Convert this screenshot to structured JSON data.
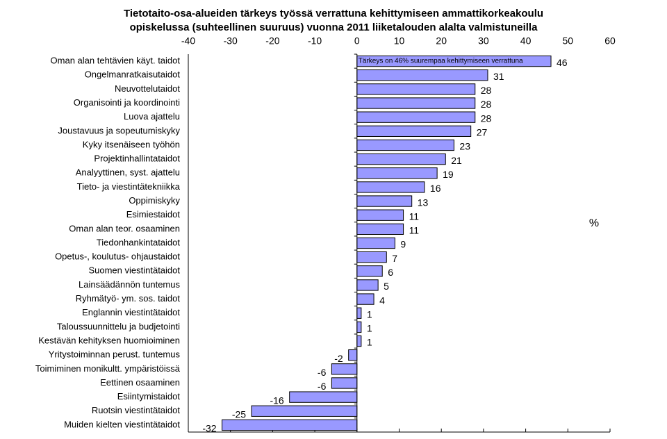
{
  "chart_data": {
    "type": "barh",
    "title": [
      "Tietotaito-osa-alueiden tärkeys työssä verrattuna kehittymiseen ammattikorkeakoulu",
      "opiskelussa (suhteellinen suuruus) vuonna 2011 liiketalouden alalta valmistuneilla"
    ],
    "x_label": "%",
    "annotation": "Tärkeys on 46% suurempaa kehittymiseen verrattuna",
    "categories": [
      "Oman alan tehtävien käyt. taidot",
      "Ongelmanratkaisutaidot",
      "Neuvottelutaidot",
      "Organisointi ja koordinointi",
      "Luova ajattelu",
      "Joustavuus ja sopeutumiskyky",
      "Kyky itsenäiseen työhön",
      "Projektinhallintataidot",
      "Analyyttinen, syst. ajattelu",
      "Tieto- ja viestintätekniikka",
      "Oppimiskyky",
      "Esimiestaidot",
      "Oman alan teor. osaaminen",
      "Tiedonhankintataidot",
      "Opetus-, koulutus- ohjaustaidot",
      "Suomen viestintätaidot",
      "Lainsäädännön tuntemus",
      "Ryhmätyö- ym. sos. taidot",
      "Englannin viestintätaidot",
      "Taloussuunnittelu ja budjetointi",
      "Kestävän kehityksen huomioiminen",
      "Yritystoiminnan perust. tuntemus",
      "Toimiminen monikultt. ympäristöissä",
      "Eettinen osaaminen",
      "Esiintymistaidot",
      "Ruotsin viestintätaidot",
      "Muiden kielten viestintätaidot"
    ],
    "values": [
      46,
      31,
      28,
      28,
      28,
      27,
      23,
      21,
      19,
      16,
      13,
      11,
      11,
      9,
      7,
      6,
      5,
      4,
      1,
      1,
      1,
      -2,
      -6,
      -6,
      -16,
      -25,
      -32
    ],
    "color": "#9999ff",
    "xlim": [
      -40,
      60
    ],
    "xticks": [
      -40,
      -30,
      -20,
      -10,
      0,
      10,
      20,
      30,
      40,
      50,
      60
    ]
  }
}
